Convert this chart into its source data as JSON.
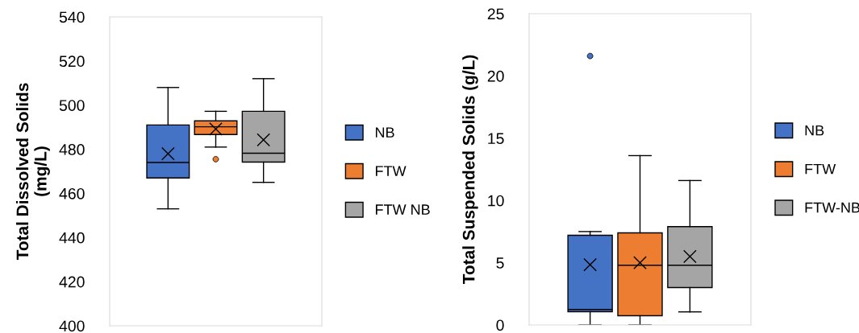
{
  "chart_data": [
    {
      "type": "box",
      "ylabel": "Total Dissolved Solids\n(mg/L)",
      "categories": [
        null
      ],
      "ylim": [
        400,
        540
      ],
      "yticks": [
        400,
        420,
        440,
        460,
        480,
        500,
        520,
        540
      ],
      "grid": false,
      "legend": "right",
      "tick_labels": "y",
      "series": [
        {
          "name": "NB",
          "color": "#4472c4",
          "boxes": [
            {
              "low": 453,
              "q1": 467,
              "median": 474,
              "q3": 491,
              "high": 508,
              "mean": 478
            }
          ]
        },
        {
          "name": "FTW",
          "color": "#ed7d31",
          "boxes": [
            {
              "low": 481,
              "q1": 486.7,
              "median": 490.2,
              "q3": 492.9,
              "high": 497.2,
              "mean": 489.2,
              "outliers": [
                475.5
              ]
            }
          ]
        },
        {
          "name": "FTW NB",
          "color": "#a5a5a5",
          "boxes": [
            {
              "low": 465,
              "q1": 474.2,
              "median": 478.2,
              "q3": 497.2,
              "high": 512,
              "mean": 484.3
            }
          ]
        }
      ]
    },
    {
      "type": "box",
      "ylabel": "Total Suspended Solids (g/L)",
      "categories": [
        null
      ],
      "ylim": [
        0,
        25
      ],
      "yticks": [
        0,
        5,
        10,
        15,
        20,
        25
      ],
      "grid": false,
      "legend": "right",
      "tick_labels": "y",
      "series": [
        {
          "name": "NB",
          "color": "#4472c4",
          "boxes": [
            {
              "low": 0,
              "q1": 1.07,
              "median": 1.24,
              "q3": 7.2,
              "high": 7.5,
              "mean": 4.84,
              "outliers": [
                21.6
              ]
            }
          ]
        },
        {
          "name": "FTW",
          "color": "#ed7d31",
          "boxes": [
            {
              "low": 0,
              "q1": 0.74,
              "median": 4.8,
              "q3": 7.4,
              "high": 13.6,
              "mean": 5.0
            }
          ]
        },
        {
          "name": "FTW-NB",
          "color": "#a5a5a5",
          "boxes": [
            {
              "low": 1.05,
              "q1": 3.0,
              "median": 4.8,
              "q3": 7.9,
              "high": 11.6,
              "mean": 5.5
            }
          ]
        }
      ]
    }
  ]
}
